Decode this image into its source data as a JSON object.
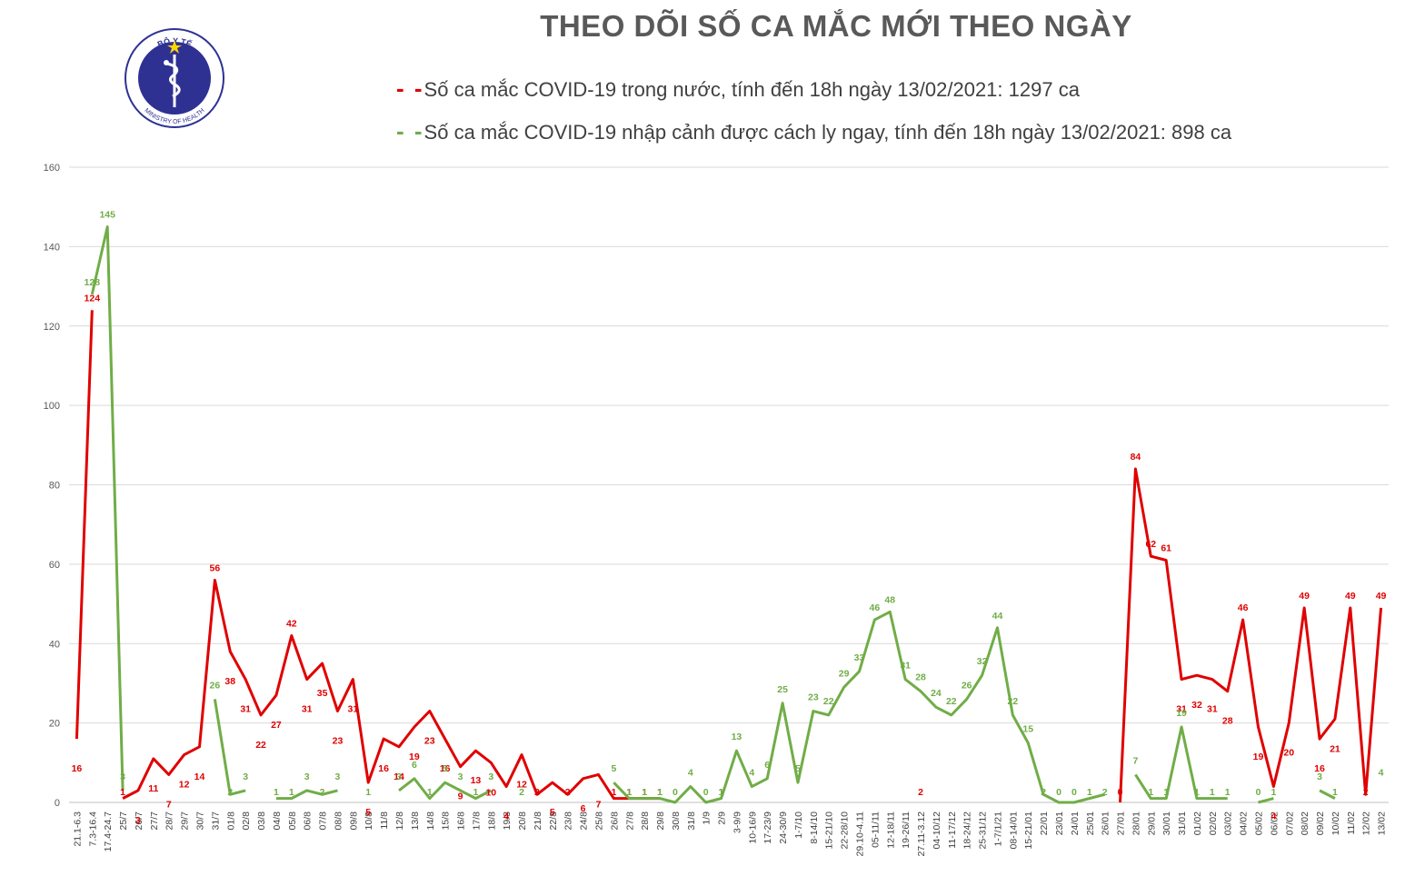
{
  "logo": {
    "top_text": "BỘ Y TẾ",
    "bottom_text": "MINISTRY OF HEALTH"
  },
  "title": "THEO DÕI SỐ CA MẮC MỚI THEO NGÀY",
  "colors": {
    "domestic": "#e00000",
    "imported": "#70ad47",
    "grid": "#d9d9d9",
    "axis_text": "#595959",
    "logo_blue": "#2e3192"
  },
  "chart_data": {
    "type": "line",
    "title": "THEO DÕI SỐ CA MẮC MỚI THEO NGÀY",
    "xlabel": "",
    "ylabel": "",
    "ylim": [
      0,
      160
    ],
    "yticks": [
      0,
      20,
      40,
      60,
      80,
      100,
      120,
      140,
      160
    ],
    "grid": true,
    "legend": "top",
    "categories": [
      "21.1-6.3",
      "7.3-16.4",
      "17.4-24.7",
      "25/7",
      "26/7",
      "27/7",
      "28/7",
      "29/7",
      "30/7",
      "31/7",
      "01/8",
      "02/8",
      "03/8",
      "04/8",
      "05/8",
      "06/8",
      "07/8",
      "08/8",
      "09/8",
      "10/8",
      "11/8",
      "12/8",
      "13/8",
      "14/8",
      "15/8",
      "16/8",
      "17/8",
      "18/8",
      "19/8",
      "20/8",
      "21/8",
      "22/8",
      "23/8",
      "24/8",
      "25/8",
      "26/8",
      "27/8",
      "28/8",
      "29/8",
      "30/8",
      "31/8",
      "1/9",
      "2/9",
      "3-9/9",
      "10-16/9",
      "17-23/9",
      "24-30/9",
      "1-7/10",
      "8-14/10",
      "15-21/10",
      "22-28/10",
      "29.10-4.11",
      "05-11/11",
      "12-18/11",
      "19-26/11",
      "27.11-3.12",
      "04-10/12",
      "11-17/12",
      "18-24/12",
      "25-31/12",
      "1-7/1/21",
      "08-14/01",
      "15-21/01",
      "22/01",
      "23/01",
      "24/01",
      "25/01",
      "26/01",
      "27/01",
      "28/01",
      "29/01",
      "30/01",
      "31/01",
      "01/02",
      "02/02",
      "03/02",
      "04/02",
      "05/02",
      "06/02",
      "07/02",
      "08/02",
      "09/02",
      "10/02",
      "11/02",
      "12/02",
      "13/02"
    ],
    "series": [
      {
        "name": "Số ca mắc COVID-19 trong nước, tính đến 18h ngày 13/02/2021: 1297 ca",
        "values": [
          16,
          124,
          null,
          1,
          3,
          11,
          7,
          12,
          14,
          56,
          38,
          31,
          22,
          27,
          42,
          31,
          35,
          23,
          31,
          5,
          16,
          14,
          19,
          23,
          16,
          9,
          13,
          10,
          4,
          12,
          2,
          5,
          2,
          6,
          7,
          1,
          1,
          1,
          1,
          null,
          null,
          null,
          1,
          null,
          null,
          null,
          null,
          null,
          null,
          null,
          null,
          null,
          null,
          null,
          null,
          2,
          null,
          null,
          null,
          null,
          null,
          null,
          null,
          null,
          null,
          null,
          null,
          null,
          0,
          84,
          62,
          61,
          31,
          32,
          31,
          28,
          46,
          19,
          4,
          20,
          49,
          16,
          21,
          49,
          2,
          49
        ]
      },
      {
        "name": "Số ca mắc COVID-19 nhập cảnh được cách ly ngay, tính đến 18h ngày 13/02/2021: 898 ca",
        "values": [
          null,
          128,
          145,
          3,
          null,
          null,
          null,
          null,
          null,
          26,
          2,
          3,
          null,
          1,
          1,
          3,
          2,
          3,
          null,
          1,
          null,
          3,
          6,
          1,
          5,
          3,
          1,
          3,
          null,
          2,
          null,
          null,
          null,
          null,
          null,
          5,
          1,
          1,
          1,
          0,
          4,
          0,
          1,
          13,
          4,
          6,
          25,
          5,
          23,
          22,
          29,
          33,
          46,
          48,
          31,
          28,
          24,
          22,
          26,
          32,
          44,
          22,
          15,
          2,
          0,
          0,
          1,
          2,
          null,
          7,
          1,
          1,
          19,
          1,
          1,
          1,
          null,
          0,
          1,
          null,
          null,
          3,
          1,
          null,
          null,
          4
        ]
      }
    ]
  }
}
